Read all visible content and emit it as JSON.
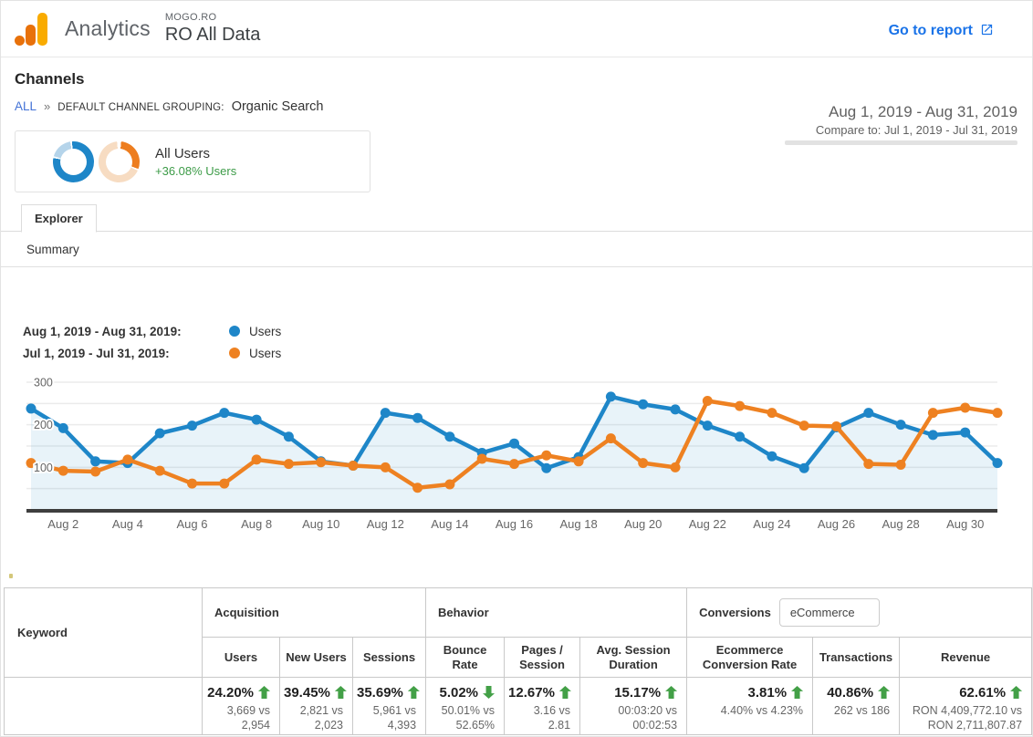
{
  "header": {
    "product": "Analytics",
    "account": "MOGO.RO",
    "property": "RO All Data",
    "go_to_report": "Go to report"
  },
  "page": {
    "title": "Channels"
  },
  "breadcrumb": {
    "all": "ALL",
    "separator": "»",
    "grouping_label": "DEFAULT CHANNEL GROUPING:",
    "grouping_value": "Organic Search"
  },
  "date_range": {
    "primary": "Aug 1, 2019 - Aug 31, 2019",
    "compare": "Compare to: Jul 1, 2019 - Jul 31, 2019"
  },
  "segment_card": {
    "name": "All Users",
    "delta": "+36.08% Users"
  },
  "tabs": {
    "explorer": "Explorer",
    "summary": "Summary"
  },
  "legend": [
    {
      "label": "Aug 1, 2019 - Aug 31, 2019:",
      "series": "Users",
      "color": "#1E86C8"
    },
    {
      "label": "Jul 1, 2019 - Jul 31, 2019:",
      "series": "Users",
      "color": "#EE8121"
    }
  ],
  "colors": {
    "chart_blue": "#1E86C8",
    "chart_orange": "#EE8121",
    "positive_green": "#43A047",
    "delta_green": "#3C9B47",
    "link_blue": "#1A73E8",
    "axis_dark": "#3E3E3E",
    "grid_gray": "#ebebeb"
  },
  "chart_data": {
    "type": "line",
    "title": "",
    "xlabel": "",
    "ylabel": "",
    "ylim": [
      0,
      300
    ],
    "yticks": [
      100,
      200,
      300
    ],
    "grid": true,
    "legend_position": "top-left",
    "categories": [
      "Aug 1",
      "Aug 2",
      "Aug 3",
      "Aug 4",
      "Aug 5",
      "Aug 6",
      "Aug 7",
      "Aug 8",
      "Aug 9",
      "Aug 10",
      "Aug 11",
      "Aug 12",
      "Aug 13",
      "Aug 14",
      "Aug 15",
      "Aug 16",
      "Aug 17",
      "Aug 18",
      "Aug 19",
      "Aug 20",
      "Aug 21",
      "Aug 22",
      "Aug 23",
      "Aug 24",
      "Aug 25",
      "Aug 26",
      "Aug 27",
      "Aug 28",
      "Aug 29",
      "Aug 30",
      "Aug 31"
    ],
    "x_tick_labels": [
      "Aug 2",
      "Aug 4",
      "Aug 6",
      "Aug 8",
      "Aug 10",
      "Aug 12",
      "Aug 14",
      "Aug 16",
      "Aug 18",
      "Aug 20",
      "Aug 22",
      "Aug 24",
      "Aug 26",
      "Aug 28",
      "Aug 30"
    ],
    "series": [
      {
        "name": "Users",
        "period": "Aug 1, 2019 - Aug 31, 2019",
        "color": "#1E86C8",
        "values": [
          238,
          192,
          114,
          110,
          180,
          198,
          228,
          212,
          172,
          114,
          104,
          228,
          216,
          172,
          134,
          156,
          98,
          124,
          266,
          248,
          236,
          198,
          172,
          126,
          98,
          194,
          228,
          200,
          176,
          182,
          110
        ]
      },
      {
        "name": "Users",
        "period": "Jul 1, 2019 - Jul 31, 2019",
        "color": "#EE8121",
        "values": [
          110,
          92,
          90,
          118,
          92,
          62,
          62,
          118,
          108,
          112,
          104,
          100,
          52,
          60,
          120,
          108,
          128,
          114,
          168,
          110,
          100,
          256,
          244,
          228,
          198,
          196,
          108,
          106,
          228,
          240,
          228
        ]
      }
    ]
  },
  "table": {
    "keyword_header": "Keyword",
    "groups": [
      {
        "label": "Acquisition"
      },
      {
        "label": "Behavior"
      },
      {
        "label": "Conversions",
        "select_value": "eCommerce"
      }
    ],
    "columns": [
      "Users",
      "New Users",
      "Sessions",
      "Bounce Rate",
      "Pages / Session",
      "Avg. Session Duration",
      "Ecommerce Conversion Rate",
      "Transactions",
      "Revenue"
    ],
    "totals": [
      {
        "pct": "24.20%",
        "dir": "up",
        "detail": "3,669 vs 2,954"
      },
      {
        "pct": "39.45%",
        "dir": "up",
        "detail": "2,821 vs 2,023"
      },
      {
        "pct": "35.69%",
        "dir": "up",
        "detail": "5,961 vs 4,393"
      },
      {
        "pct": "5.02%",
        "dir": "down",
        "detail": "50.01% vs 52.65%"
      },
      {
        "pct": "12.67%",
        "dir": "up",
        "detail": "3.16 vs 2.81"
      },
      {
        "pct": "15.17%",
        "dir": "up",
        "detail": "00:03:20 vs 00:02:53"
      },
      {
        "pct": "3.81%",
        "dir": "up",
        "detail": "4.40% vs 4.23%"
      },
      {
        "pct": "40.86%",
        "dir": "up",
        "detail": "262 vs 186"
      },
      {
        "pct": "62.61%",
        "dir": "up",
        "detail": "RON 4,409,772.10 vs RON 2,711,807.87"
      }
    ]
  }
}
